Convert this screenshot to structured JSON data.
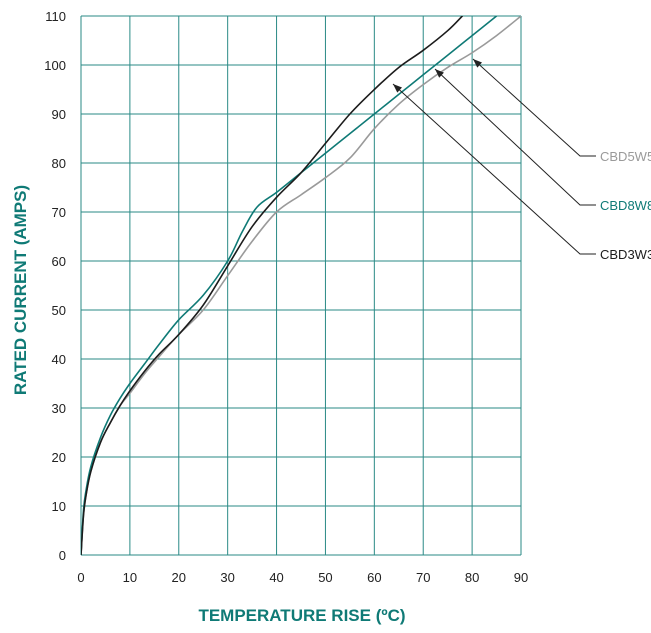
{
  "chart_data": {
    "type": "line",
    "title": "",
    "xlabel": "TEMPERATURE RISE (ºC)",
    "ylabel": "RATED CURRENT (AMPS)",
    "xlim": [
      0,
      90
    ],
    "ylim": [
      0,
      110
    ],
    "x_ticks": [
      "0",
      "10",
      "20",
      "30",
      "40",
      "50",
      "60",
      "70",
      "80",
      "90"
    ],
    "y_ticks": [
      "0",
      "10",
      "20",
      "30",
      "40",
      "50",
      "60",
      "70",
      "80",
      "90",
      "100",
      "110"
    ],
    "grid": true,
    "legend_position": "right",
    "series": [
      {
        "name": "CBD5W5",
        "color": "#9a9a9a",
        "points": [
          [
            0,
            0
          ],
          [
            0.5,
            8
          ],
          [
            1,
            12
          ],
          [
            2,
            17
          ],
          [
            4,
            23
          ],
          [
            6,
            27
          ],
          [
            8,
            30.5
          ],
          [
            10,
            33
          ],
          [
            13,
            37
          ],
          [
            16,
            40.5
          ],
          [
            20,
            45
          ],
          [
            25,
            50
          ],
          [
            30,
            57
          ],
          [
            35,
            64
          ],
          [
            40,
            70
          ],
          [
            45,
            73.5
          ],
          [
            50,
            77
          ],
          [
            55,
            81
          ],
          [
            60,
            87
          ],
          [
            65,
            92
          ],
          [
            70,
            96
          ],
          [
            75,
            99.5
          ],
          [
            80,
            102.5
          ],
          [
            85,
            106
          ],
          [
            90,
            110
          ]
        ]
      },
      {
        "name": "CBD8W8",
        "color": "#0f7a76",
        "points": [
          [
            0,
            0
          ],
          [
            0.5,
            9
          ],
          [
            1,
            13
          ],
          [
            2,
            18
          ],
          [
            4,
            24
          ],
          [
            6,
            28.5
          ],
          [
            8,
            32
          ],
          [
            10,
            35
          ],
          [
            13,
            39
          ],
          [
            16,
            43
          ],
          [
            20,
            48
          ],
          [
            25,
            53
          ],
          [
            30,
            60
          ],
          [
            33,
            66
          ],
          [
            36,
            71
          ],
          [
            40,
            74
          ],
          [
            45,
            78
          ],
          [
            50,
            82
          ],
          [
            55,
            86
          ],
          [
            60,
            90
          ],
          [
            65,
            94
          ],
          [
            70,
            98
          ],
          [
            75,
            102
          ],
          [
            80,
            106
          ],
          [
            85,
            110
          ]
        ]
      },
      {
        "name": "CBD3W3",
        "color": "#1c1c1c",
        "points": [
          [
            0,
            0
          ],
          [
            0.5,
            8
          ],
          [
            1,
            12
          ],
          [
            2,
            17
          ],
          [
            4,
            23
          ],
          [
            6,
            27
          ],
          [
            8,
            30.5
          ],
          [
            10,
            33.5
          ],
          [
            13,
            37.5
          ],
          [
            16,
            41
          ],
          [
            20,
            45
          ],
          [
            25,
            51
          ],
          [
            30,
            59
          ],
          [
            35,
            67
          ],
          [
            40,
            73
          ],
          [
            45,
            78
          ],
          [
            50,
            84
          ],
          [
            55,
            90
          ],
          [
            60,
            95
          ],
          [
            65,
            99.5
          ],
          [
            70,
            103
          ],
          [
            75,
            107
          ],
          [
            78,
            110
          ]
        ]
      }
    ]
  }
}
